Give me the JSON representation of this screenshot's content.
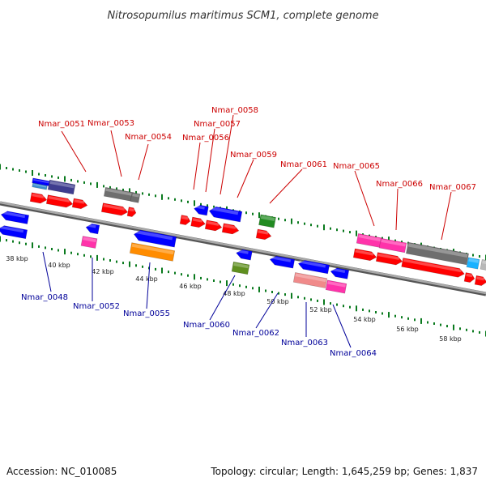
{
  "title": "Nitrosopumilus maritimus SCM1, complete genome",
  "footer": {
    "accession": "Accession: NC_010085",
    "summary": "Topology: circular; Length: 1,645,259 bp; Genes: 1,837"
  },
  "colors": {
    "label_top": "#cc0000",
    "label_bottom": "#000099",
    "red": "#ff0000",
    "blue": "#0000ff",
    "navy": "#3f3d8f",
    "gray": "#6e6e6e",
    "lightblue": "#3b8fcf",
    "pink": "#ff33aa",
    "salmon": "#f08a8a",
    "orange": "#ff8c00",
    "olive": "#5f8f1f",
    "green": "#228b22",
    "cyan": "#1ab2ff",
    "silver": "#b8b8b8",
    "backbone": "#8a8a8a",
    "tick": "#0a7a1e"
  },
  "kbp_labels": [
    "38 kbp",
    "40 kbp",
    "42 kbp",
    "44 kbp",
    "46 kbp",
    "48 kbp",
    "50 kbp",
    "52 kbp",
    "54 kbp",
    "56 kbp",
    "58 kbp"
  ],
  "gene_labels_top": [
    "Nmar_0051",
    "Nmar_0053",
    "Nmar_0054",
    "Nmar_0056",
    "Nmar_0057",
    "Nmar_0058",
    "Nmar_0059",
    "Nmar_0061",
    "Nmar_0065",
    "Nmar_0066",
    "Nmar_0067"
  ],
  "gene_labels_bottom": [
    "Nmar_0048",
    "Nmar_0052",
    "Nmar_0055",
    "Nmar_0060",
    "Nmar_0062",
    "Nmar_0063",
    "Nmar_0064"
  ]
}
